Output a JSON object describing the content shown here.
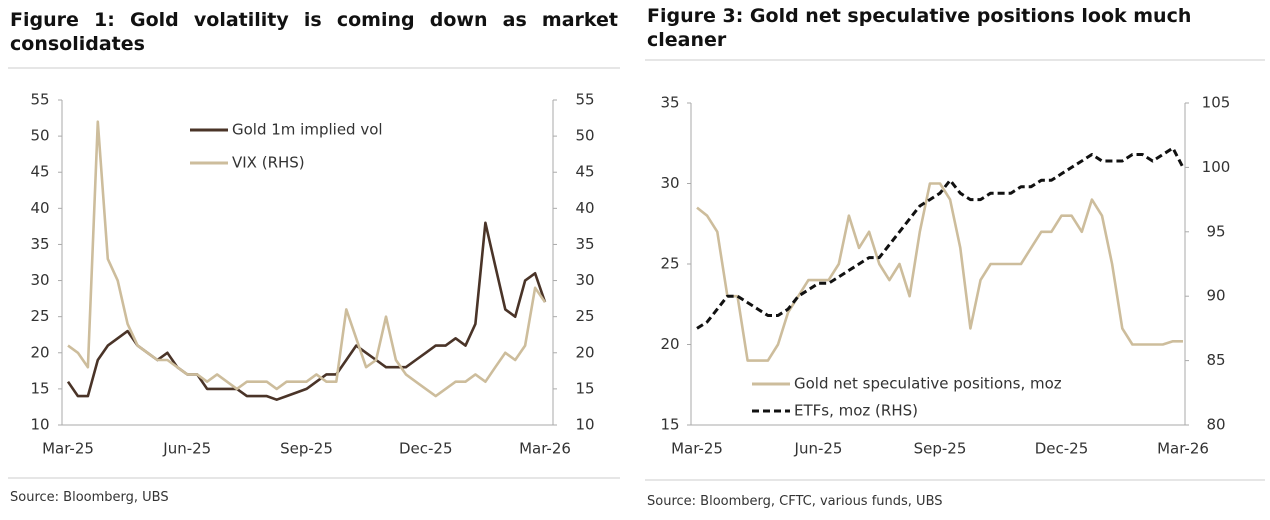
{
  "chart_data": [
    {
      "type": "line",
      "title": "Figure 1: Gold volatility is coming down as market consolidates",
      "source": "Source: Bloomberg, UBS",
      "categories": [
        "Mar-25",
        null,
        null,
        null,
        null,
        null,
        null,
        null,
        null,
        null,
        null,
        null,
        "Jun-25",
        null,
        null,
        null,
        null,
        null,
        null,
        null,
        null,
        null,
        null,
        null,
        "Sep-25",
        null,
        null,
        null,
        null,
        null,
        null,
        null,
        null,
        null,
        null,
        null,
        "Dec-25",
        null,
        null,
        null,
        null,
        null,
        null,
        null,
        null,
        null,
        null,
        null,
        "Mar-26"
      ],
      "ylim": [
        10,
        55
      ],
      "yticks": [
        10,
        15,
        20,
        25,
        30,
        35,
        40,
        45,
        50,
        55
      ],
      "y2lim": [
        10,
        55
      ],
      "y2ticks": [
        10,
        15,
        20,
        25,
        30,
        35,
        40,
        45,
        50,
        55
      ],
      "series": [
        {
          "name": "Gold 1m implied vol",
          "color": "#4a3428",
          "values": [
            16,
            14,
            14,
            19,
            21,
            22,
            23,
            21,
            20,
            19,
            20,
            18,
            17,
            17,
            15,
            15,
            15,
            15,
            14,
            14,
            14,
            13.5,
            14,
            14.5,
            15,
            16,
            17,
            17,
            19,
            21,
            20,
            19,
            18,
            18,
            18,
            19,
            20,
            21,
            21,
            22,
            21,
            24,
            38,
            32,
            26,
            25,
            30,
            31,
            27
          ]
        },
        {
          "name": "VIX (RHS)",
          "color": "#cdbd9c",
          "axis": "y2",
          "values": [
            21,
            20,
            18,
            52,
            33,
            30,
            24,
            21,
            20,
            19,
            19,
            18,
            17,
            17,
            16,
            17,
            16,
            15,
            16,
            16,
            16,
            15,
            16,
            16,
            16,
            17,
            16,
            16,
            26,
            22,
            18,
            19,
            25,
            19,
            17,
            16,
            15,
            14,
            15,
            16,
            16,
            17,
            16,
            18,
            20,
            19,
            21,
            29,
            27
          ]
        }
      ]
    },
    {
      "type": "line",
      "title": "Figure 3: Gold net speculative positions look much cleaner",
      "source": "Source: Bloomberg, CFTC, various funds, UBS",
      "categories": [
        "Mar-25",
        null,
        null,
        null,
        null,
        null,
        null,
        null,
        null,
        null,
        null,
        null,
        "Jun-25",
        null,
        null,
        null,
        null,
        null,
        null,
        null,
        null,
        null,
        null,
        null,
        "Sep-25",
        null,
        null,
        null,
        null,
        null,
        null,
        null,
        null,
        null,
        null,
        null,
        "Dec-25",
        null,
        null,
        null,
        null,
        null,
        null,
        null,
        null,
        null,
        null,
        null,
        "Mar-26"
      ],
      "ylim": [
        15,
        35
      ],
      "yticks": [
        15,
        20,
        25,
        30,
        35
      ],
      "y2lim": [
        80,
        105
      ],
      "y2ticks": [
        80,
        85,
        90,
        95,
        100,
        105
      ],
      "series": [
        {
          "name": "Gold net speculative positions, moz",
          "color": "#cdbd9c",
          "values": [
            28.5,
            28,
            27,
            23,
            23,
            19,
            19,
            19,
            20,
            22,
            23,
            24,
            24,
            24,
            25,
            28,
            26,
            27,
            25,
            24,
            25,
            23,
            27,
            30,
            30,
            29,
            26,
            21,
            24,
            25,
            25,
            25,
            25,
            26,
            27,
            27,
            28,
            28,
            27,
            29,
            28,
            25,
            21,
            20,
            20,
            20,
            20,
            20.2,
            20.2
          ]
        },
        {
          "name": "ETFs, moz (RHS)",
          "color": "#111111",
          "axis": "y2",
          "dashed": true,
          "values": [
            87.5,
            88,
            89,
            90,
            90,
            89.5,
            89,
            88.5,
            88.5,
            89,
            90,
            90.5,
            91,
            91,
            91.5,
            92,
            92.5,
            93,
            93,
            94,
            95,
            96,
            97,
            97.5,
            98,
            99,
            98,
            97.5,
            97.5,
            98,
            98,
            98,
            98.5,
            98.5,
            99,
            99,
            99.5,
            100,
            100.5,
            101,
            100.5,
            100.5,
            100.5,
            101,
            101,
            100.5,
            101,
            101.5,
            100
          ]
        }
      ]
    }
  ]
}
